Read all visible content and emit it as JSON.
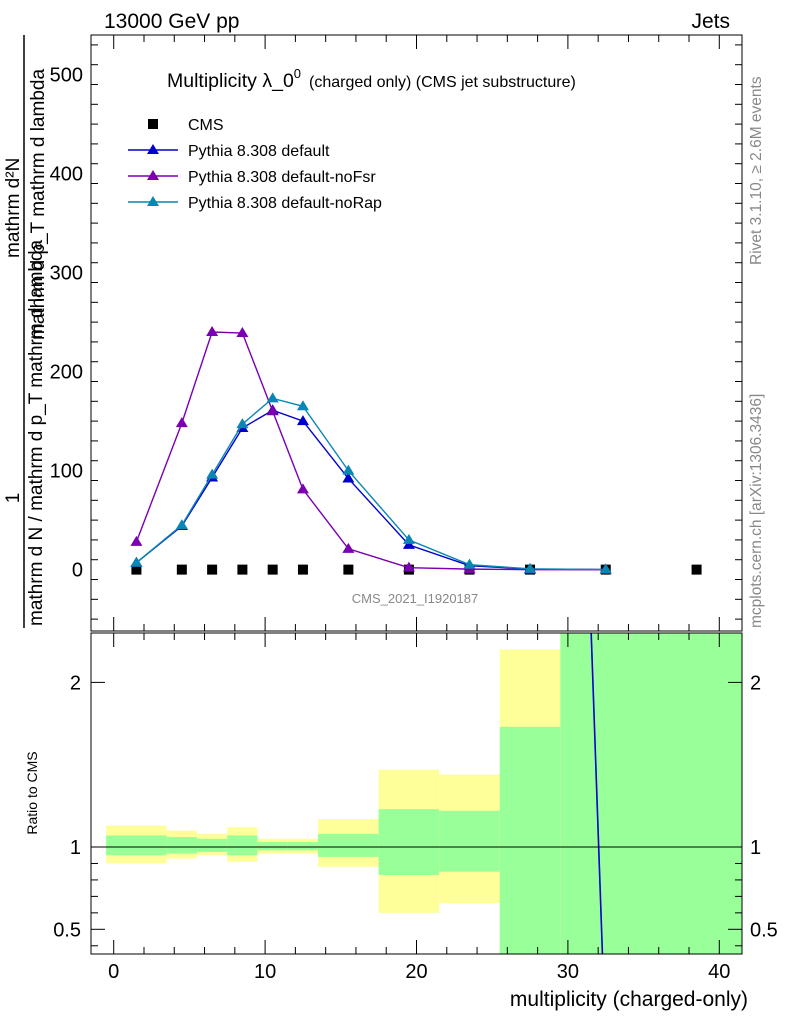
{
  "header": {
    "left": "13000 GeV pp",
    "right": "Jets"
  },
  "side_labels": {
    "rivet": "Rivet 3.1.10, ≥ 2.6M events",
    "mcplots": "mcplots.cern.ch [arXiv:1306.3436]"
  },
  "watermark": "CMS_2021_I1920187",
  "chart_data": [
    {
      "type": "scatter",
      "title_main": "Multiplicity λ_0",
      "title_sup": "0",
      "title_sub": "(charged only) (CMS jet substructure)",
      "ylabel_num": "1",
      "ylabel_den": "mathrm d N / mathrm d p_T mathrm d lambda",
      "ylabel_main": "mathrm d²N",
      "ylabel_sub": "mathrm d p_T mathrm d lambda",
      "ylim": [
        -62,
        540
      ],
      "y_ticks": [
        0,
        100,
        200,
        300,
        400,
        500
      ],
      "xlim": [
        -1.5,
        41.5
      ],
      "legend_position": "top-left",
      "series": [
        {
          "name": "CMS",
          "color": "#000000",
          "marker": "square",
          "x": [
            1.5,
            4.5,
            6.5,
            8.5,
            10.5,
            12.5,
            15.5,
            19.5,
            23.5,
            27.5,
            32.5,
            38.5
          ],
          "y": [
            0,
            0,
            0,
            0,
            0,
            0,
            0,
            0,
            0,
            0,
            0,
            0
          ]
        },
        {
          "name": "Pythia 8.308 default",
          "color": "#0000cc",
          "marker": "triangle",
          "x": [
            1.5,
            4.5,
            6.5,
            8.5,
            10.5,
            12.5,
            15.5,
            19.5,
            23.5,
            27.5,
            32.5
          ],
          "y": [
            7,
            44,
            93,
            143,
            161,
            150,
            92,
            25,
            4,
            0.5,
            0.1
          ]
        },
        {
          "name": "Pythia 8.308 default-noFsr",
          "color": "#7a00b0",
          "marker": "triangle",
          "x": [
            1.5,
            4.5,
            6.5,
            8.5,
            10.5,
            12.5,
            15.5,
            19.5,
            23.5,
            27.5,
            32.5
          ],
          "y": [
            28,
            148,
            240,
            239,
            160,
            81,
            21,
            2,
            0.5,
            0,
            0
          ]
        },
        {
          "name": "Pythia 8.308 default-noRap",
          "color": "#0a86b3",
          "marker": "triangle",
          "x": [
            1.5,
            4.5,
            6.5,
            8.5,
            10.5,
            12.5,
            15.5,
            19.5,
            23.5,
            27.5,
            32.5
          ],
          "y": [
            7,
            45,
            96,
            147,
            173,
            165,
            100,
            30,
            5,
            0.8,
            0.1
          ]
        }
      ]
    },
    {
      "type": "area",
      "ylabel": "Ratio to CMS",
      "xlabel": "multiplicity (charged-only)",
      "ylim": [
        0.35,
        2.3
      ],
      "y_ticks": [
        0.5,
        1,
        2
      ],
      "x_ticks": [
        0,
        10,
        20,
        30,
        40
      ],
      "xlim": [
        -1.5,
        41.5
      ],
      "bands": {
        "bins": [
          [
            -0.5,
            3.5
          ],
          [
            3.5,
            5.5
          ],
          [
            5.5,
            7.5
          ],
          [
            7.5,
            9.5
          ],
          [
            9.5,
            11.5
          ],
          [
            11.5,
            13.5
          ],
          [
            13.5,
            17.5
          ],
          [
            17.5,
            21.5
          ],
          [
            21.5,
            25.5
          ],
          [
            25.5,
            29.5
          ],
          [
            29.5,
            41.5
          ]
        ],
        "yellow_low": [
          0.9,
          0.93,
          0.95,
          0.91,
          0.96,
          0.96,
          0.88,
          0.6,
          0.66,
          0.3,
          0.3
        ],
        "yellow_high": [
          1.13,
          1.1,
          1.08,
          1.12,
          1.05,
          1.05,
          1.17,
          1.47,
          1.44,
          2.2,
          2.4
        ],
        "green_low": [
          0.95,
          0.96,
          0.97,
          0.95,
          0.98,
          0.98,
          0.94,
          0.83,
          0.85,
          0.3,
          0.3
        ],
        "green_high": [
          1.07,
          1.06,
          1.05,
          1.07,
          1.03,
          1.03,
          1.08,
          1.23,
          1.22,
          1.73,
          2.4
        ]
      },
      "reference_line": 1,
      "model_line": {
        "name": "Pythia 8.308 default",
        "color": "#0000cc",
        "x": [
          31.5,
          32.3
        ],
        "y": [
          2.4,
          0.3
        ]
      }
    }
  ]
}
